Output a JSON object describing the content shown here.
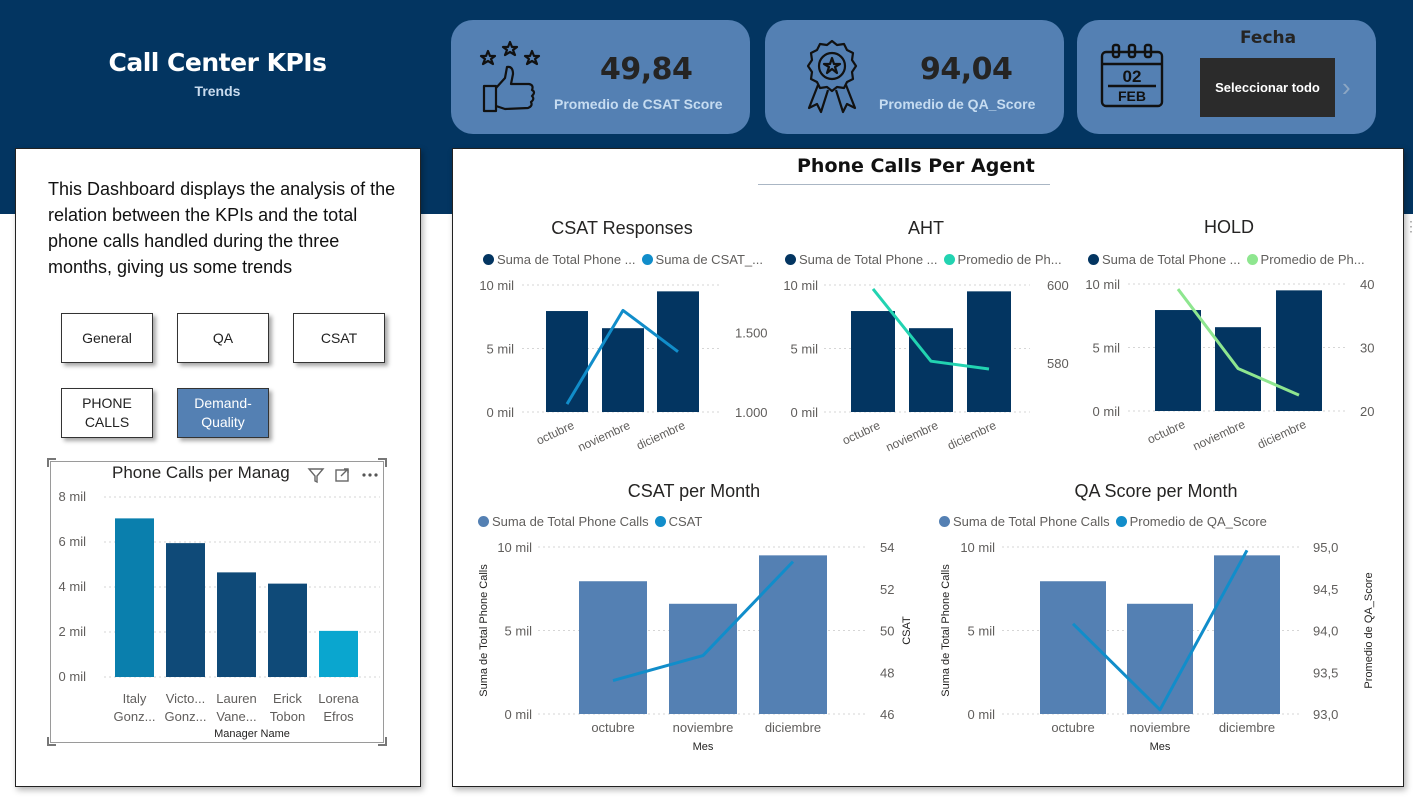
{
  "header": {
    "title": "Call Center KPIs",
    "subtitle": "Trends"
  },
  "kpis": [
    {
      "value": "49,84",
      "label": "Promedio de CSAT Score",
      "icon": "thumbs-up-stars-icon"
    },
    {
      "value": "94,04",
      "label": "Promedio de QA_Score",
      "icon": "award-ribbon-icon"
    }
  ],
  "date_slicer": {
    "title": "Fecha",
    "selected": "Seleccionar todo",
    "calendar_day": "02",
    "calendar_month": "FEB",
    "icon": "calendar-icon",
    "next_icon": "chevron-right-icon"
  },
  "intro_text": "This Dashboard displays the analysis of the relation between the KPIs and the total phone calls handled during the three months, giving us some trends",
  "nav_buttons": [
    "General",
    "QA",
    "CSAT",
    "PHONE CALLS",
    "Demand-Quality"
  ],
  "nav_active": "Demand-Quality",
  "main_title": "Phone Calls Per Agent",
  "colors": {
    "dark_navy": "#033561",
    "mid_blue": "#5480b3",
    "teal": "#118dca",
    "aqua": "#22d3b1",
    "light_green": "#8ee68f",
    "bar_teal": "#0a7fad",
    "bar_navy": "#0f4a78",
    "bar_cyan": "#0aa6cf"
  },
  "chart_data": [
    {
      "id": "managers",
      "type": "bar",
      "title": "Phone Calls per Manag",
      "xlabel": "Manager Name",
      "categories": [
        [
          "Italy",
          "Gonz..."
        ],
        [
          "Victo...",
          "Gonz..."
        ],
        [
          "Lauren",
          "Vane..."
        ],
        [
          "Erick",
          "Tobon"
        ],
        [
          "Lorena",
          "Efros"
        ]
      ],
      "values": [
        7050,
        5950,
        4650,
        4150,
        2050
      ],
      "ylim": [
        0,
        8000
      ],
      "yticks": [
        0,
        2000,
        4000,
        6000,
        8000
      ],
      "ytick_labels": [
        "0 mil",
        "2 mil",
        "4 mil",
        "6 mil",
        "8 mil"
      ]
    },
    {
      "id": "csat_responses",
      "type": "bar+line",
      "title": "CSAT Responses",
      "categories": [
        "octubre",
        "noviembre",
        "diciembre"
      ],
      "series": [
        {
          "name": "Suma de Total Phone ...",
          "kind": "bar",
          "values": [
            7950,
            6600,
            9500
          ]
        },
        {
          "name": "Suma de CSAT_...",
          "kind": "line",
          "values": [
            1050,
            1640,
            1380
          ]
        }
      ],
      "ylim_left": [
        0,
        10000
      ],
      "left_ticks": [
        0,
        5000,
        10000
      ],
      "left_labels": [
        "0 mil",
        "5 mil",
        "10 mil"
      ],
      "ylim_right": [
        1000,
        1800
      ],
      "right_ticks": [
        1000,
        1500
      ],
      "right_labels": [
        "1.000",
        "1.500"
      ]
    },
    {
      "id": "aht",
      "type": "bar+line",
      "title": "AHT",
      "categories": [
        "octubre",
        "noviembre",
        "diciembre"
      ],
      "series": [
        {
          "name": "Suma de Total Phone ...",
          "kind": "bar",
          "values": [
            7950,
            6600,
            9500
          ]
        },
        {
          "name": "Promedio de Ph...",
          "kind": "line",
          "values": [
            599,
            580.5,
            578.5
          ]
        }
      ],
      "ylim_left": [
        0,
        10000
      ],
      "left_ticks": [
        0,
        5000,
        10000
      ],
      "left_labels": [
        "0 mil",
        "5 mil",
        "10 mil"
      ],
      "ylim_right": [
        567.5,
        600
      ],
      "right_ticks": [
        580,
        600
      ],
      "right_labels": [
        "580",
        "600"
      ]
    },
    {
      "id": "hold",
      "type": "bar+line",
      "title": "HOLD",
      "categories": [
        "octubre",
        "noviembre",
        "diciembre"
      ],
      "series": [
        {
          "name": "Suma de Total Phone ...",
          "kind": "bar",
          "values": [
            7950,
            6600,
            9500
          ]
        },
        {
          "name": "Promedio de Ph...",
          "kind": "line",
          "values": [
            39.2,
            26.7,
            22.5
          ]
        }
      ],
      "ylim_left": [
        0,
        10000
      ],
      "left_ticks": [
        0,
        5000,
        10000
      ],
      "left_labels": [
        "0 mil",
        "5 mil",
        "10 mil"
      ],
      "ylim_right": [
        20,
        40
      ],
      "right_ticks": [
        20,
        30,
        40
      ],
      "right_labels": [
        "20",
        "30",
        "40"
      ]
    },
    {
      "id": "csat_month",
      "type": "bar+line",
      "title": "CSAT per Month",
      "xlabel": "Mes",
      "ylabel_left": "Suma de Total Phone Calls",
      "ylabel_right": "CSAT",
      "categories": [
        "octubre",
        "noviembre",
        "diciembre"
      ],
      "series": [
        {
          "name": "Suma de Total Phone Calls",
          "kind": "bar",
          "values": [
            7950,
            6600,
            9500
          ]
        },
        {
          "name": "CSAT",
          "kind": "line",
          "values": [
            47.6,
            48.8,
            53.3
          ]
        }
      ],
      "ylim_left": [
        0,
        10000
      ],
      "left_ticks": [
        0,
        5000,
        10000
      ],
      "left_labels": [
        "0 mil",
        "5 mil",
        "10 mil"
      ],
      "ylim_right": [
        46,
        54
      ],
      "right_ticks": [
        46,
        48,
        50,
        52,
        54
      ],
      "right_labels": [
        "46",
        "48",
        "50",
        "52",
        "54"
      ]
    },
    {
      "id": "qa_month",
      "type": "bar+line",
      "title": "QA Score per Month",
      "xlabel": "Mes",
      "ylabel_left": "Suma de Total Phone Calls",
      "ylabel_right": "Promedio de QA_Score",
      "categories": [
        "octubre",
        "noviembre",
        "diciembre"
      ],
      "series": [
        {
          "name": "Suma de Total Phone Calls",
          "kind": "bar",
          "values": [
            7950,
            6600,
            9500
          ]
        },
        {
          "name": "Promedio de QA_Score",
          "kind": "line",
          "values": [
            94.08,
            93.05,
            94.96
          ]
        }
      ],
      "ylim_left": [
        0,
        10000
      ],
      "left_ticks": [
        0,
        5000,
        10000
      ],
      "left_labels": [
        "0 mil",
        "5 mil",
        "10 mil"
      ],
      "ylim_right": [
        93.0,
        95.0
      ],
      "right_ticks": [
        93.0,
        93.5,
        94.0,
        94.5,
        95.0
      ],
      "right_labels": [
        "93,0",
        "93,5",
        "94,0",
        "94,5",
        "95,0"
      ]
    }
  ]
}
